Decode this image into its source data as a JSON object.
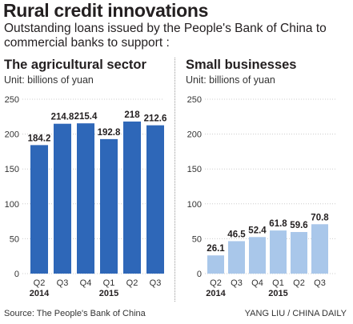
{
  "title": "Rural credit innovations",
  "subtitle": "Outstanding loans issued by the People's Bank of China to commercial banks to support :",
  "source": "Source: The People's Bank of China",
  "credit": "YANG LIU / CHINA DAILY",
  "colors": {
    "agri_bar": "#2e67b8",
    "small_bar": "#a9c7ea",
    "grid": "#cccccc"
  },
  "chart_data": [
    {
      "type": "bar",
      "title": "The agricultural sector",
      "unit": "Unit: billions of yuan",
      "categories": [
        "Q2",
        "Q3",
        "Q4",
        "Q1",
        "Q2",
        "Q3"
      ],
      "year_labels": [
        "2014",
        "",
        "",
        "2015",
        "",
        ""
      ],
      "values": [
        184.2,
        214.8,
        215.4,
        192.8,
        218,
        212.6
      ],
      "value_labels": [
        "184.2",
        "214.8",
        "215.4",
        "192.8",
        "218",
        "212.6"
      ],
      "ylim": [
        0,
        250
      ],
      "yticks": [
        0,
        50,
        100,
        150,
        200,
        250
      ],
      "grid": true
    },
    {
      "type": "bar",
      "title": "Small businesses",
      "unit": "Unit: billions of yuan",
      "categories": [
        "Q2",
        "Q3",
        "Q4",
        "Q1",
        "Q2",
        "Q3"
      ],
      "year_labels": [
        "2014",
        "",
        "",
        "2015",
        "",
        ""
      ],
      "values": [
        26.1,
        46.5,
        52.4,
        61.8,
        59.6,
        70.8
      ],
      "value_labels": [
        "26.1",
        "46.5",
        "52.4",
        "61.8",
        "59.6",
        "70.8"
      ],
      "ylim": [
        0,
        250
      ],
      "yticks": [
        0,
        50,
        100,
        150,
        200,
        250
      ],
      "grid": true
    }
  ]
}
